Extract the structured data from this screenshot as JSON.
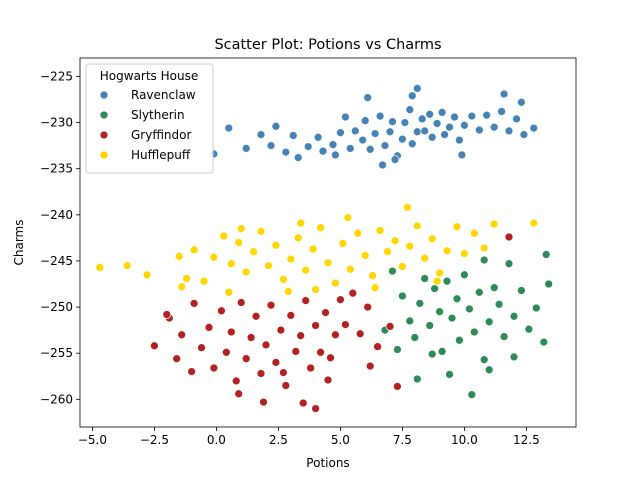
{
  "chart_data": {
    "type": "scatter",
    "title": "Scatter Plot: Potions vs Charms",
    "xlabel": "Potions",
    "ylabel": "Charms",
    "xlim": [
      -5.5,
      14.5
    ],
    "ylim": [
      -263,
      -223
    ],
    "xticks": [
      "−5.0",
      "−2.5",
      "0.0",
      "2.5",
      "5.0",
      "7.5",
      "10.0",
      "12.5"
    ],
    "xtick_values": [
      -5.0,
      -2.5,
      0.0,
      2.5,
      5.0,
      7.5,
      10.0,
      12.5
    ],
    "yticks": [
      "−225",
      "−230",
      "−235",
      "−240",
      "−245",
      "−250",
      "−255",
      "−260"
    ],
    "ytick_values": [
      -225,
      -230,
      -235,
      -240,
      -245,
      -250,
      -255,
      -260
    ],
    "grid": false,
    "legend": {
      "title": "Hogwarts House",
      "placement": "top-left"
    },
    "series": [
      {
        "name": "Ravenclaw",
        "color": "#4682b4",
        "points": [
          [
            -0.1,
            -233.4
          ],
          [
            0.5,
            -230.6
          ],
          [
            1.2,
            -232.8
          ],
          [
            2.2,
            -232.5
          ],
          [
            2.8,
            -233.2
          ],
          [
            3.1,
            -231.4
          ],
          [
            3.7,
            -232.6
          ],
          [
            4.1,
            -231.6
          ],
          [
            4.3,
            -233.1
          ],
          [
            4.7,
            -232.4
          ],
          [
            5.0,
            -231.1
          ],
          [
            5.2,
            -229.4
          ],
          [
            5.4,
            -232.8
          ],
          [
            5.6,
            -230.9
          ],
          [
            5.9,
            -231.9
          ],
          [
            6.0,
            -229.8
          ],
          [
            6.2,
            -232.9
          ],
          [
            6.4,
            -231.2
          ],
          [
            6.6,
            -229.3
          ],
          [
            6.8,
            -232.5
          ],
          [
            7.0,
            -231.0
          ],
          [
            7.1,
            -229.9
          ],
          [
            7.3,
            -233.6
          ],
          [
            7.5,
            -231.8
          ],
          [
            7.6,
            -230.0
          ],
          [
            7.8,
            -228.6
          ],
          [
            7.9,
            -232.3
          ],
          [
            8.1,
            -231.0
          ],
          [
            8.3,
            -229.6
          ],
          [
            8.4,
            -230.9
          ],
          [
            8.6,
            -229.1
          ],
          [
            8.7,
            -231.6
          ],
          [
            8.9,
            -230.1
          ],
          [
            9.1,
            -228.9
          ],
          [
            9.2,
            -231.3
          ],
          [
            9.4,
            -230.5
          ],
          [
            9.6,
            -229.4
          ],
          [
            9.8,
            -231.9
          ],
          [
            10.0,
            -230.3
          ],
          [
            10.3,
            -229.3
          ],
          [
            10.6,
            -230.8
          ],
          [
            10.9,
            -229.2
          ],
          [
            11.2,
            -230.5
          ],
          [
            11.5,
            -228.8
          ],
          [
            11.8,
            -230.9
          ],
          [
            12.1,
            -229.6
          ],
          [
            12.4,
            -231.3
          ],
          [
            12.8,
            -230.6
          ],
          [
            8.1,
            -226.3
          ],
          [
            11.6,
            -226.9
          ],
          [
            3.3,
            -233.8
          ],
          [
            4.8,
            -233.5
          ],
          [
            6.7,
            -234.6
          ],
          [
            7.2,
            -234.0
          ],
          [
            9.9,
            -233.5
          ],
          [
            1.8,
            -231.3
          ],
          [
            2.4,
            -230.4
          ],
          [
            6.1,
            -227.3
          ],
          [
            7.9,
            -227.1
          ],
          [
            12.3,
            -227.8
          ]
        ]
      },
      {
        "name": "Slytherin",
        "color": "#2e8b57",
        "points": [
          [
            7.1,
            -246.1
          ],
          [
            7.5,
            -248.8
          ],
          [
            7.8,
            -251.5
          ],
          [
            8.0,
            -253.3
          ],
          [
            8.2,
            -249.6
          ],
          [
            8.4,
            -246.9
          ],
          [
            8.6,
            -252.0
          ],
          [
            8.8,
            -248.0
          ],
          [
            9.0,
            -250.5
          ],
          [
            9.1,
            -254.8
          ],
          [
            9.3,
            -247.2
          ],
          [
            9.5,
            -251.2
          ],
          [
            9.7,
            -249.1
          ],
          [
            9.8,
            -253.6
          ],
          [
            10.0,
            -246.5
          ],
          [
            10.2,
            -250.2
          ],
          [
            10.4,
            -252.7
          ],
          [
            10.6,
            -248.4
          ],
          [
            10.8,
            -255.7
          ],
          [
            11.0,
            -251.6
          ],
          [
            11.2,
            -247.9
          ],
          [
            11.4,
            -249.7
          ],
          [
            11.6,
            -253.2
          ],
          [
            11.8,
            -245.3
          ],
          [
            12.0,
            -251.0
          ],
          [
            12.3,
            -248.2
          ],
          [
            12.6,
            -252.4
          ],
          [
            12.9,
            -250.1
          ],
          [
            13.2,
            -253.8
          ],
          [
            13.4,
            -247.5
          ],
          [
            8.1,
            -257.8
          ],
          [
            10.3,
            -259.5
          ],
          [
            11.0,
            -256.8
          ],
          [
            9.4,
            -257.3
          ],
          [
            13.3,
            -244.3
          ],
          [
            6.8,
            -252.5
          ],
          [
            7.3,
            -254.6
          ],
          [
            12.0,
            -255.4
          ],
          [
            10.8,
            -244.9
          ],
          [
            8.7,
            -255.1
          ]
        ]
      },
      {
        "name": "Gryffindor",
        "color": "#b22222",
        "points": [
          [
            -2.5,
            -254.2
          ],
          [
            -1.9,
            -251.2
          ],
          [
            -1.6,
            -255.6
          ],
          [
            -1.4,
            -253.0
          ],
          [
            -1.0,
            -257.0
          ],
          [
            -0.9,
            -249.6
          ],
          [
            -0.6,
            -254.4
          ],
          [
            -0.3,
            -252.2
          ],
          [
            -0.1,
            -256.6
          ],
          [
            0.2,
            -250.4
          ],
          [
            0.4,
            -254.9
          ],
          [
            0.6,
            -252.7
          ],
          [
            0.8,
            -258.0
          ],
          [
            1.0,
            -249.5
          ],
          [
            1.2,
            -255.6
          ],
          [
            1.4,
            -253.3
          ],
          [
            1.6,
            -251.0
          ],
          [
            1.8,
            -257.2
          ],
          [
            2.0,
            -254.1
          ],
          [
            2.2,
            -249.8
          ],
          [
            2.4,
            -256.0
          ],
          [
            2.6,
            -252.5
          ],
          [
            2.8,
            -258.5
          ],
          [
            3.0,
            -250.9
          ],
          [
            3.2,
            -254.8
          ],
          [
            3.4,
            -253.1
          ],
          [
            3.6,
            -249.3
          ],
          [
            3.8,
            -256.6
          ],
          [
            4.0,
            -252.0
          ],
          [
            4.2,
            -254.9
          ],
          [
            4.4,
            -250.6
          ],
          [
            4.6,
            -255.5
          ],
          [
            4.8,
            -253.0
          ],
          [
            5.0,
            -249.2
          ],
          [
            5.2,
            -251.9
          ],
          [
            5.5,
            -248.5
          ],
          [
            5.8,
            -252.9
          ],
          [
            6.1,
            -250.0
          ],
          [
            6.5,
            -254.3
          ],
          [
            7.0,
            -252.1
          ],
          [
            1.9,
            -260.3
          ],
          [
            3.5,
            -260.4
          ],
          [
            4.0,
            -261.0
          ],
          [
            0.9,
            -259.4
          ],
          [
            -2.0,
            -250.8
          ],
          [
            2.7,
            -257.1
          ],
          [
            4.5,
            -257.9
          ],
          [
            7.3,
            -258.6
          ],
          [
            11.8,
            -242.4
          ],
          [
            6.2,
            -256.4
          ]
        ]
      },
      {
        "name": "Hufflepuff",
        "color": "#ffd700",
        "points": [
          [
            -4.7,
            -245.7
          ],
          [
            -3.6,
            -245.5
          ],
          [
            -2.8,
            -246.5
          ],
          [
            -1.5,
            -244.5
          ],
          [
            -1.2,
            -246.9
          ],
          [
            -0.9,
            -243.8
          ],
          [
            -0.5,
            -247.2
          ],
          [
            -0.1,
            -244.6
          ],
          [
            0.3,
            -242.3
          ],
          [
            0.6,
            -245.3
          ],
          [
            0.9,
            -243.0
          ],
          [
            1.2,
            -246.2
          ],
          [
            1.5,
            -244.0
          ],
          [
            1.8,
            -241.8
          ],
          [
            2.1,
            -245.5
          ],
          [
            2.4,
            -243.3
          ],
          [
            2.7,
            -247.0
          ],
          [
            3.0,
            -244.8
          ],
          [
            3.3,
            -242.5
          ],
          [
            3.6,
            -246.0
          ],
          [
            3.9,
            -243.7
          ],
          [
            4.2,
            -241.4
          ],
          [
            4.5,
            -245.2
          ],
          [
            4.8,
            -247.4
          ],
          [
            5.1,
            -243.1
          ],
          [
            5.4,
            -245.9
          ],
          [
            5.7,
            -242.0
          ],
          [
            6.0,
            -244.4
          ],
          [
            6.3,
            -246.6
          ],
          [
            6.6,
            -241.7
          ],
          [
            6.9,
            -244.0
          ],
          [
            7.2,
            -242.8
          ],
          [
            7.5,
            -245.6
          ],
          [
            7.8,
            -243.4
          ],
          [
            8.1,
            -241.2
          ],
          [
            8.4,
            -244.7
          ],
          [
            8.7,
            -242.6
          ],
          [
            9.0,
            -246.3
          ],
          [
            9.3,
            -243.9
          ],
          [
            9.7,
            -241.3
          ],
          [
            10.0,
            -244.2
          ],
          [
            10.4,
            -242.0
          ],
          [
            10.8,
            -243.6
          ],
          [
            11.2,
            -241.0
          ],
          [
            12.8,
            -240.9
          ],
          [
            7.7,
            -239.2
          ],
          [
            5.3,
            -240.3
          ],
          [
            2.9,
            -248.3
          ],
          [
            1.0,
            -241.5
          ],
          [
            -1.4,
            -247.8
          ],
          [
            6.4,
            -247.9
          ],
          [
            4.0,
            -248.1
          ],
          [
            8.9,
            -247.2
          ],
          [
            0.5,
            -248.4
          ],
          [
            3.4,
            -240.9
          ]
        ]
      }
    ]
  }
}
